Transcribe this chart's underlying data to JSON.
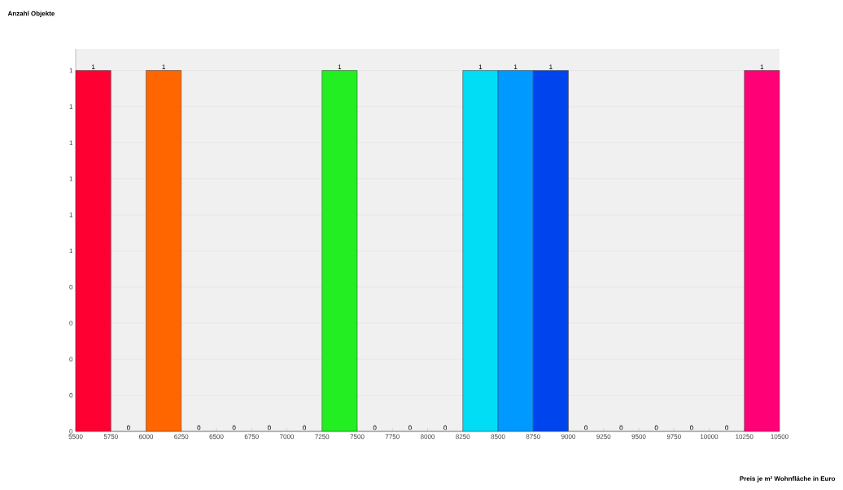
{
  "chart_data": {
    "type": "histogram",
    "annotations": [
      "Anzahl Objekte",
      "Preis je m² Wohnfläche in Euro"
    ],
    "bins": [
      5500,
      5750,
      6000,
      6250,
      6500,
      6750,
      7000,
      7250,
      7500,
      7750,
      8000,
      8250,
      8500,
      8750,
      9000,
      9250,
      9500,
      9750,
      10000,
      10250,
      10500
    ],
    "values": [
      1,
      0,
      1,
      0,
      0,
      0,
      0,
      1,
      0,
      0,
      0,
      1,
      1,
      1,
      0,
      0,
      0,
      0,
      0,
      1
    ],
    "colors": [
      "#ff0033",
      null,
      "#ff6600",
      null,
      null,
      null,
      null,
      "#22ee22",
      null,
      null,
      null,
      "#00ddf5",
      "#0099ff",
      "#0044ee",
      null,
      null,
      null,
      null,
      null,
      "#ff0077"
    ],
    "data_labels": true,
    "grid": "y",
    "xlim": [
      5500,
      10500
    ],
    "ylim": [
      0,
      1.06
    ],
    "xticks": [
      5500,
      5750,
      6000,
      6250,
      6500,
      6750,
      7000,
      7250,
      7500,
      7750,
      8000,
      8250,
      8500,
      8750,
      9000,
      9250,
      9500,
      9750,
      10000,
      10250,
      10500
    ],
    "yticks": [
      0,
      {
        "value": 0.1,
        "label": "0"
      },
      {
        "value": 0.2,
        "label": "0"
      },
      {
        "value": 0.3,
        "label": "0"
      },
      {
        "value": 0.4,
        "label": "0"
      },
      {
        "value": 0.5,
        "label": "1"
      },
      {
        "value": 0.6,
        "label": "1"
      },
      {
        "value": 0.7,
        "label": "1"
      },
      {
        "value": 0.8,
        "label": "1"
      },
      {
        "value": 0.9,
        "label": "1"
      },
      1
    ]
  }
}
